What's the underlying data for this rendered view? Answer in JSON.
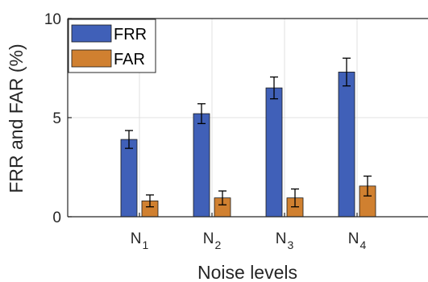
{
  "chart_data": {
    "type": "bar",
    "title": "",
    "xlabel": "Noise levels",
    "ylabel": "FRR and FAR (%)",
    "ylim": [
      0,
      10
    ],
    "yticks": [
      "0",
      "5",
      "10"
    ],
    "categories": [
      {
        "base": "N",
        "sub": "1"
      },
      {
        "base": "N",
        "sub": "2"
      },
      {
        "base": "N",
        "sub": "3"
      },
      {
        "base": "N",
        "sub": "4"
      }
    ],
    "series": [
      {
        "name": "FRR",
        "color": "#4060b8",
        "values": [
          3.9,
          5.2,
          6.5,
          7.3
        ],
        "error": [
          0.45,
          0.5,
          0.55,
          0.7
        ]
      },
      {
        "name": "FAR",
        "color": "#d08030",
        "values": [
          0.8,
          0.95,
          0.95,
          1.55
        ],
        "error": [
          0.3,
          0.35,
          0.45,
          0.5
        ]
      }
    ],
    "grid": true,
    "legend": "top-left"
  }
}
